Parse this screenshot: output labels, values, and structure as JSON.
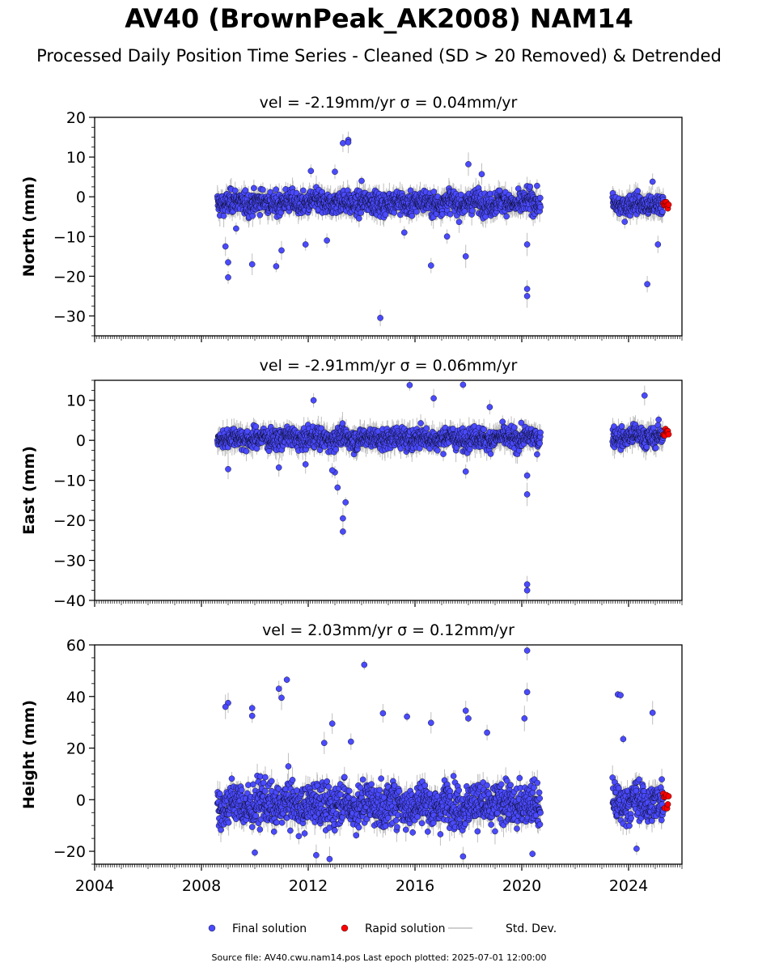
{
  "title": "AV40 (BrownPeak_AK2008) NAM14",
  "subtitle": "Processed Daily Position Time Series - Cleaned (SD > 20 Removed) & Detrended",
  "footer": "Source file: AV40.cwu.nam14.pos  Last epoch plotted: 2025-07-01 12:00:00",
  "colors": {
    "final": "#4a4aff",
    "rapid": "#ff0000",
    "stddev": "#bfbfbf",
    "marker_edge": "#000000"
  },
  "legend": [
    {
      "label": "Final solution",
      "marker": "circle",
      "color": "#4a4aff"
    },
    {
      "label": "Rapid solution",
      "marker": "circle",
      "color": "#ff0000"
    },
    {
      "label": "Std. Dev.",
      "marker": "line",
      "color": "#bfbfbf"
    }
  ],
  "chart_data": [
    {
      "type": "scatter",
      "title": "vel = -2.19mm/yr   σ = 0.04mm/yr",
      "ylabel": "North (mm)",
      "xlabel": "",
      "xlim": [
        2004.0,
        2026.0
      ],
      "ylim": [
        -35,
        20
      ],
      "yticks": [
        20,
        10,
        0,
        -10,
        -20,
        -30
      ],
      "xticks": [
        2004,
        2008,
        2012,
        2016,
        2020,
        2024
      ],
      "show_xtick_labels": false,
      "segments": [
        {
          "series": "Final solution",
          "x_start": 2008.6,
          "x_end": 2020.7,
          "center": -1.5,
          "spread": 2.2
        },
        {
          "series": "Final solution",
          "x_start": 2023.4,
          "x_end": 2025.3,
          "center": -2.0,
          "spread": 2.0
        },
        {
          "series": "Rapid solution",
          "x_start": 2025.3,
          "x_end": 2025.5,
          "center": -2.5,
          "spread": 1.2
        }
      ],
      "outliers": [
        {
          "x": 2009.0,
          "y": -20.3
        },
        {
          "x": 2009.0,
          "y": -16.5
        },
        {
          "x": 2008.9,
          "y": -12.5
        },
        {
          "x": 2009.9,
          "y": -17.0
        },
        {
          "x": 2010.8,
          "y": -17.5
        },
        {
          "x": 2011.0,
          "y": -13.5
        },
        {
          "x": 2013.3,
          "y": 13.5
        },
        {
          "x": 2013.5,
          "y": 14.3
        },
        {
          "x": 2013.5,
          "y": 13.7
        },
        {
          "x": 2014.7,
          "y": -30.5
        },
        {
          "x": 2016.6,
          "y": -17.3
        },
        {
          "x": 2018.0,
          "y": 8.2
        },
        {
          "x": 2018.5,
          "y": 5.7
        },
        {
          "x": 2012.1,
          "y": 6.5
        },
        {
          "x": 2013.0,
          "y": 6.3
        },
        {
          "x": 2020.2,
          "y": -23.2
        },
        {
          "x": 2020.2,
          "y": -25.0
        },
        {
          "x": 2020.2,
          "y": -12.0
        },
        {
          "x": 2017.9,
          "y": -15.0
        },
        {
          "x": 2024.7,
          "y": -22.0
        },
        {
          "x": 2024.9,
          "y": 3.8
        },
        {
          "x": 2025.1,
          "y": -12.0
        },
        {
          "x": 2009.3,
          "y": -8.0
        },
        {
          "x": 2011.9,
          "y": -12.0
        },
        {
          "x": 2015.6,
          "y": -9.0
        },
        {
          "x": 2017.2,
          "y": -10.0
        },
        {
          "x": 2012.7,
          "y": -11.0
        },
        {
          "x": 2014.0,
          "y": 4.0
        }
      ]
    },
    {
      "type": "scatter",
      "title": "vel = -2.91mm/yr   σ = 0.06mm/yr",
      "ylabel": "East (mm)",
      "xlabel": "",
      "xlim": [
        2004.0,
        2026.0
      ],
      "ylim": [
        -40,
        15
      ],
      "yticks": [
        10,
        0,
        -10,
        -20,
        -30,
        -40
      ],
      "xticks": [
        2004,
        2008,
        2012,
        2016,
        2020,
        2024
      ],
      "show_xtick_labels": false,
      "segments": [
        {
          "series": "Final solution",
          "x_start": 2008.6,
          "x_end": 2020.7,
          "center": 0.5,
          "spread": 2.0
        },
        {
          "series": "Final solution",
          "x_start": 2023.4,
          "x_end": 2025.3,
          "center": 1.0,
          "spread": 2.0
        },
        {
          "series": "Rapid solution",
          "x_start": 2025.3,
          "x_end": 2025.5,
          "center": 1.5,
          "spread": 1.5
        }
      ],
      "outliers": [
        {
          "x": 2013.3,
          "y": -22.8
        },
        {
          "x": 2013.3,
          "y": -19.5
        },
        {
          "x": 2013.4,
          "y": -15.5
        },
        {
          "x": 2013.1,
          "y": -11.8
        },
        {
          "x": 2013.0,
          "y": -8.0
        },
        {
          "x": 2012.9,
          "y": -7.5
        },
        {
          "x": 2009.0,
          "y": -7.2
        },
        {
          "x": 2010.9,
          "y": -6.8
        },
        {
          "x": 2012.2,
          "y": 10.0
        },
        {
          "x": 2015.8,
          "y": 13.8
        },
        {
          "x": 2017.8,
          "y": 13.9
        },
        {
          "x": 2016.7,
          "y": 10.5
        },
        {
          "x": 2024.6,
          "y": 11.2
        },
        {
          "x": 2020.2,
          "y": -36.0
        },
        {
          "x": 2020.2,
          "y": -37.5
        },
        {
          "x": 2020.2,
          "y": -13.5
        },
        {
          "x": 2020.2,
          "y": -8.8
        },
        {
          "x": 2017.9,
          "y": -7.8
        },
        {
          "x": 2018.8,
          "y": 8.3
        },
        {
          "x": 2011.9,
          "y": -6.0
        }
      ]
    },
    {
      "type": "scatter",
      "title": "vel = 2.03mm/yr   σ = 0.12mm/yr",
      "ylabel": "Height (mm)",
      "xlabel": "",
      "xlim": [
        2004.0,
        2026.0
      ],
      "ylim": [
        -25,
        60
      ],
      "yticks": [
        60,
        40,
        20,
        0,
        -20
      ],
      "xticks": [
        2004,
        2008,
        2012,
        2016,
        2020,
        2024
      ],
      "xtick_labels": [
        "2004",
        "2008",
        "2012",
        "2016",
        "2020",
        "2024"
      ],
      "show_xtick_labels": true,
      "segments": [
        {
          "series": "Final solution",
          "x_start": 2008.6,
          "x_end": 2020.7,
          "center": -2.0,
          "spread": 6.5
        },
        {
          "series": "Final solution",
          "x_start": 2023.4,
          "x_end": 2025.3,
          "center": -1.0,
          "spread": 6.0
        },
        {
          "series": "Rapid solution",
          "x_start": 2025.3,
          "x_end": 2025.5,
          "center": 0.0,
          "spread": 4.0
        }
      ],
      "outliers": [
        {
          "x": 2009.0,
          "y": 37.5
        },
        {
          "x": 2008.9,
          "y": 36.0
        },
        {
          "x": 2009.9,
          "y": 35.5
        },
        {
          "x": 2009.9,
          "y": 32.5
        },
        {
          "x": 2010.9,
          "y": 43.0
        },
        {
          "x": 2011.0,
          "y": 39.5
        },
        {
          "x": 2011.2,
          "y": 46.5
        },
        {
          "x": 2014.1,
          "y": 52.3
        },
        {
          "x": 2020.2,
          "y": 57.8
        },
        {
          "x": 2020.2,
          "y": 41.7
        },
        {
          "x": 2020.1,
          "y": 31.5
        },
        {
          "x": 2023.6,
          "y": 40.8
        },
        {
          "x": 2023.7,
          "y": 40.5
        },
        {
          "x": 2024.9,
          "y": 33.7
        },
        {
          "x": 2014.8,
          "y": 33.5
        },
        {
          "x": 2015.7,
          "y": 32.2
        },
        {
          "x": 2016.6,
          "y": 29.8
        },
        {
          "x": 2017.9,
          "y": 34.5
        },
        {
          "x": 2018.0,
          "y": 31.5
        },
        {
          "x": 2012.9,
          "y": 29.5
        },
        {
          "x": 2012.6,
          "y": 22.0
        },
        {
          "x": 2013.6,
          "y": 22.5
        },
        {
          "x": 2010.0,
          "y": -20.5
        },
        {
          "x": 2012.8,
          "y": -23.0
        },
        {
          "x": 2017.8,
          "y": -22.0
        },
        {
          "x": 2020.4,
          "y": -21.0
        },
        {
          "x": 2024.3,
          "y": -19.0
        },
        {
          "x": 2012.3,
          "y": -21.5
        },
        {
          "x": 2018.7,
          "y": 26.0
        },
        {
          "x": 2023.8,
          "y": 23.5
        }
      ]
    }
  ]
}
